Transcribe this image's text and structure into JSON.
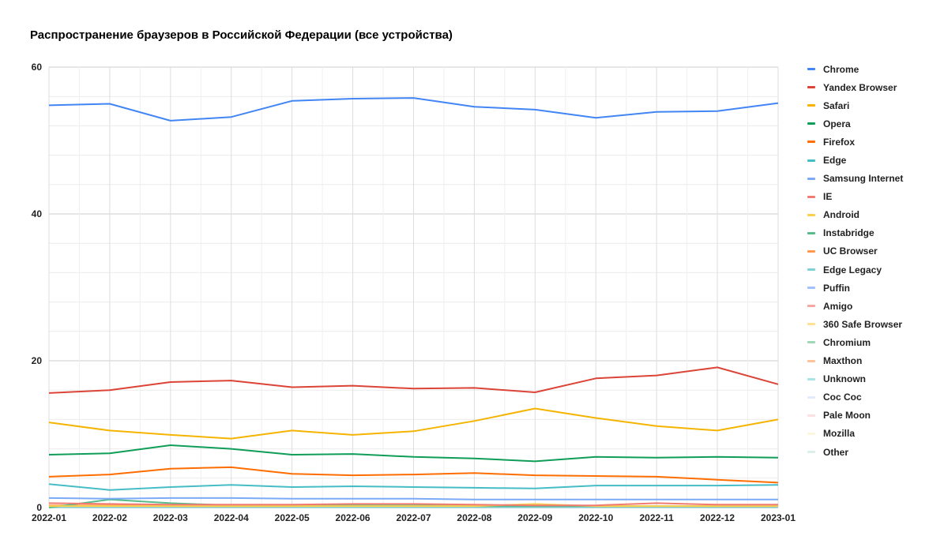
{
  "chart_data": {
    "type": "line",
    "title": "Распространение браузеров в Российской Федерации (все устройства)",
    "xlabel": "",
    "ylabel": "",
    "ylim": [
      0,
      60
    ],
    "yticks": [
      0,
      20,
      40,
      60
    ],
    "grid": true,
    "legend_position": "right",
    "categories": [
      "2022-01",
      "2022-02",
      "2022-03",
      "2022-04",
      "2022-05",
      "2022-06",
      "2022-07",
      "2022-08",
      "2022-09",
      "2022-10",
      "2022-11",
      "2022-12",
      "2023-01"
    ],
    "series": [
      {
        "name": "Chrome",
        "color": "#4285f4",
        "values": [
          54.8,
          55.0,
          52.7,
          53.2,
          55.4,
          55.7,
          55.8,
          54.6,
          54.2,
          53.1,
          53.9,
          54.0,
          55.1
        ]
      },
      {
        "name": "Yandex Browser",
        "color": "#db4437",
        "values": [
          15.6,
          16.0,
          17.1,
          17.3,
          16.4,
          16.6,
          16.2,
          16.3,
          15.7,
          17.6,
          18.0,
          19.1,
          16.8
        ]
      },
      {
        "name": "Safari",
        "color": "#f4b400",
        "values": [
          11.6,
          10.5,
          9.9,
          9.4,
          10.5,
          9.9,
          10.4,
          11.8,
          13.5,
          12.2,
          11.1,
          10.5,
          12.0
        ]
      },
      {
        "name": "Opera",
        "color": "#0f9d58",
        "values": [
          7.2,
          7.4,
          8.5,
          8.0,
          7.2,
          7.3,
          6.9,
          6.7,
          6.3,
          6.9,
          6.8,
          6.9,
          6.8
        ]
      },
      {
        "name": "Firefox",
        "color": "#ff6d00",
        "values": [
          4.2,
          4.5,
          5.3,
          5.5,
          4.6,
          4.4,
          4.5,
          4.7,
          4.4,
          4.3,
          4.2,
          3.8,
          3.4
        ]
      },
      {
        "name": "Edge",
        "color": "#46bdc6",
        "values": [
          3.2,
          2.4,
          2.8,
          3.1,
          2.8,
          2.9,
          2.8,
          2.7,
          2.6,
          3.0,
          3.0,
          3.0,
          3.1
        ]
      },
      {
        "name": "Samsung Internet",
        "color": "#7baaf7",
        "values": [
          1.3,
          1.2,
          1.3,
          1.3,
          1.2,
          1.2,
          1.2,
          1.1,
          1.1,
          1.1,
          1.1,
          1.1,
          1.1
        ]
      },
      {
        "name": "IE",
        "color": "#f07b72",
        "values": [
          0.6,
          0.5,
          0.4,
          0.4,
          0.4,
          0.5,
          0.5,
          0.4,
          0.3,
          0.3,
          0.6,
          0.4,
          0.4
        ]
      },
      {
        "name": "Android",
        "color": "#fcd04f",
        "values": [
          0.2,
          0.2,
          0.2,
          0.2,
          0.2,
          0.2,
          0.2,
          0.2,
          0.5,
          0.2,
          0.2,
          0.2,
          0.2
        ]
      },
      {
        "name": "Instabridge",
        "color": "#57bb8a",
        "values": [
          0.0,
          1.1,
          0.6,
          0.3,
          0.3,
          0.3,
          0.3,
          0.2,
          0.2,
          0.2,
          0.2,
          0.2,
          0.2
        ]
      },
      {
        "name": "UC Browser",
        "color": "#ff994d",
        "values": [
          0.3,
          0.3,
          0.2,
          0.2,
          0.2,
          0.3,
          0.2,
          0.3,
          0.3,
          0.2,
          0.2,
          0.2,
          0.2
        ]
      },
      {
        "name": "Edge Legacy",
        "color": "#7ed1d7",
        "values": [
          0.1,
          0.1,
          0.1,
          0.1,
          0.1,
          0.1,
          0.1,
          0.1,
          0.1,
          0.1,
          0.1,
          0.1,
          0.1
        ]
      },
      {
        "name": "Puffin",
        "color": "#a0c3ff",
        "values": [
          0.1,
          0.1,
          0.1,
          0.1,
          0.1,
          0.1,
          0.1,
          0.1,
          0.1,
          0.1,
          0.1,
          0.1,
          0.1
        ]
      },
      {
        "name": "Amigo",
        "color": "#f5a7a1",
        "values": [
          0.1,
          0.1,
          0.1,
          0.1,
          0.1,
          0.1,
          0.1,
          0.1,
          0.1,
          0.1,
          0.1,
          0.1,
          0.1
        ]
      },
      {
        "name": "360 Safe Browser",
        "color": "#fde293",
        "values": [
          0.1,
          0.1,
          0.1,
          0.1,
          0.1,
          0.1,
          0.1,
          0.1,
          0.1,
          0.1,
          0.1,
          0.1,
          0.1
        ]
      },
      {
        "name": "Chromium",
        "color": "#9fd8b7",
        "values": [
          0.1,
          0.1,
          0.1,
          0.1,
          0.1,
          0.1,
          0.1,
          0.1,
          0.1,
          0.1,
          0.1,
          0.1,
          0.1
        ]
      },
      {
        "name": "Maxthon",
        "color": "#ffc299",
        "values": [
          0.1,
          0.1,
          0.1,
          0.1,
          0.1,
          0.1,
          0.1,
          0.1,
          0.1,
          0.1,
          0.1,
          0.1,
          0.1
        ]
      },
      {
        "name": "Unknown",
        "color": "#a8e3e7",
        "values": [
          0.0,
          0.0,
          0.0,
          0.0,
          0.0,
          0.0,
          0.0,
          0.0,
          0.0,
          0.0,
          0.0,
          0.0,
          0.0
        ]
      },
      {
        "name": "Coc Coc",
        "color": "#e1ebfb",
        "values": [
          0.0,
          0.0,
          0.0,
          0.0,
          0.0,
          0.0,
          0.0,
          0.0,
          0.0,
          0.0,
          0.0,
          0.0,
          0.0
        ]
      },
      {
        "name": "Pale Moon",
        "color": "#fbe1df",
        "values": [
          0.0,
          0.0,
          0.0,
          0.0,
          0.0,
          0.0,
          0.0,
          0.0,
          0.0,
          0.0,
          0.0,
          0.0,
          0.0
        ]
      },
      {
        "name": "Mozilla",
        "color": "#fef6dc",
        "values": [
          0.0,
          0.0,
          0.0,
          0.0,
          0.0,
          0.0,
          0.0,
          0.0,
          0.0,
          0.0,
          0.0,
          0.0,
          0.0
        ]
      },
      {
        "name": "Other",
        "color": "#d9efe8",
        "values": [
          0.0,
          0.0,
          0.0,
          0.0,
          0.0,
          0.0,
          0.0,
          0.0,
          0.0,
          0.0,
          0.0,
          0.0,
          0.0
        ]
      }
    ]
  }
}
